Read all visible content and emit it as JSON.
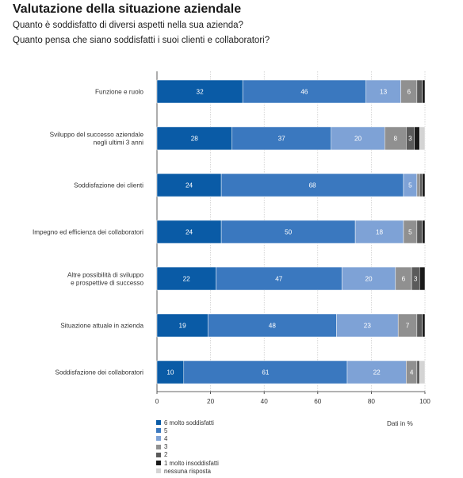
{
  "header": {
    "title": "Valutazione della situazione aziendale",
    "subtitle_1": "Quanto è soddisfatto di diversi aspetti nella sua azienda?",
    "subtitle_2": "Quanto pensa che siano soddisfatti i suoi clienti e collaboratori?"
  },
  "colors": [
    "#0a5ba6",
    "#3a78bf",
    "#7ea2d6",
    "#909090",
    "#5a5a5a",
    "#1a1a1a",
    "#d4d4d4"
  ],
  "chart_data": {
    "type": "bar",
    "orientation": "horizontal",
    "stacked": true,
    "unit_label": "Dati in %",
    "xlim": [
      0,
      100
    ],
    "xticks": [
      0,
      20,
      40,
      60,
      80,
      100
    ],
    "categories": [
      [
        "Funzione e ruolo"
      ],
      [
        "Sviluppo del successo aziendale",
        "negli ultimi 3 anni"
      ],
      [
        "Soddisfazione dei clienti"
      ],
      [
        "Impegno ed efficienza dei collaboratori"
      ],
      [
        "Altre possibilità di sviluppo",
        "e prospettive di successo"
      ],
      [
        "Situazione attuale in azienda"
      ],
      [
        "Soddisfazione dei collaboratori"
      ]
    ],
    "series": [
      {
        "name": "6 molto soddisfatti",
        "values": [
          32,
          28,
          24,
          24,
          22,
          19,
          10
        ]
      },
      {
        "name": "5",
        "values": [
          46,
          37,
          68,
          50,
          47,
          48,
          61
        ]
      },
      {
        "name": "4",
        "values": [
          13,
          20,
          5,
          18,
          20,
          23,
          22
        ]
      },
      {
        "name": "3",
        "values": [
          6,
          8,
          1,
          5,
          6,
          7,
          4
        ]
      },
      {
        "name": "2",
        "values": [
          2,
          3,
          1,
          2,
          3,
          2,
          1
        ]
      },
      {
        "name": "1 molto insoddisfatti",
        "values": [
          1,
          2,
          1,
          1,
          2,
          1,
          0
        ]
      },
      {
        "name": "nessuna risposta",
        "values": [
          0,
          2,
          0,
          0,
          0,
          0,
          2
        ]
      }
    ],
    "labeled_series": [
      0,
      1,
      2,
      3,
      4
    ]
  }
}
